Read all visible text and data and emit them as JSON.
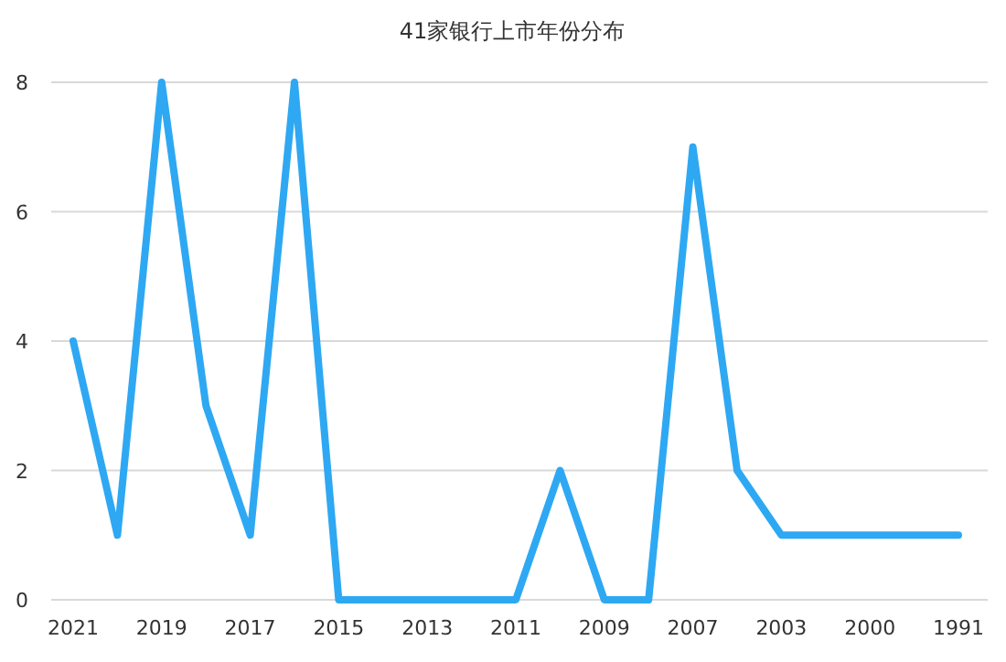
{
  "chart_data": {
    "type": "line",
    "title": "41家银行上市年份分布",
    "categories": [
      "2021",
      null,
      "2019",
      null,
      "2017",
      null,
      "2015",
      null,
      "2013",
      null,
      "2011",
      null,
      "2009",
      null,
      "2007",
      null,
      "2003",
      null,
      "2000",
      null,
      "1991"
    ],
    "values": [
      4,
      1,
      8,
      3,
      1,
      8,
      0,
      0,
      0,
      0,
      0,
      2,
      0,
      0,
      7,
      2,
      1,
      1,
      1,
      1,
      1
    ],
    "color": "#2ea8f2",
    "ylim": [
      0,
      8
    ],
    "yticks": [
      0,
      2,
      4,
      6,
      8
    ],
    "grid": "y"
  }
}
